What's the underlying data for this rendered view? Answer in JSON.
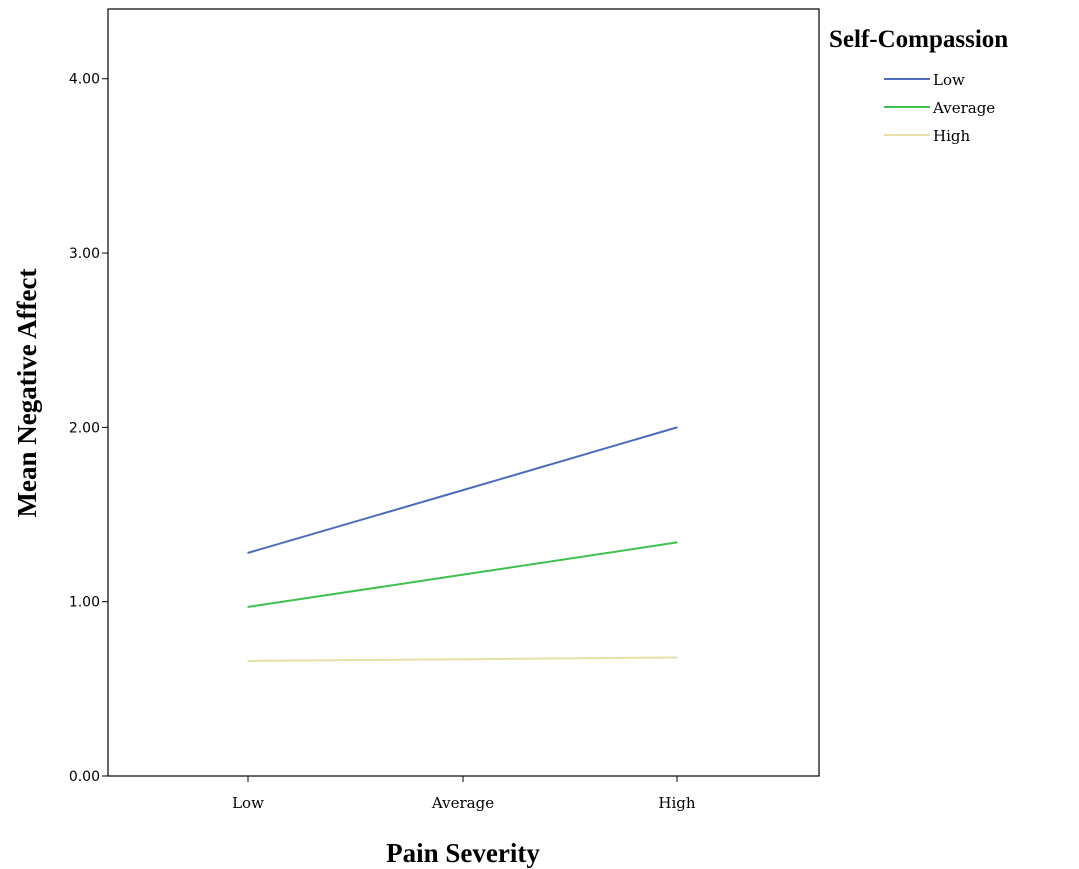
{
  "chart_data": {
    "type": "line",
    "title": "",
    "xlabel": "Pain Severity",
    "ylabel": "Mean Negative Affect",
    "categories": [
      "Low",
      "Average",
      "High"
    ],
    "ylim": [
      0,
      4.4
    ],
    "yticks": [
      0,
      1,
      2,
      3,
      4
    ],
    "ytick_labels": [
      "0.00",
      "1.00",
      "2.00",
      "3.00",
      "4.00"
    ],
    "grid": false,
    "legend": {
      "title": "Self-Compassion",
      "placement": "top-right, outside plot"
    },
    "series": [
      {
        "name": "Low",
        "color": "#4a6cbb",
        "values": [
          1.28,
          1.64,
          2.0
        ]
      },
      {
        "name": "Average",
        "color": "#3ec14f",
        "values": [
          0.97,
          1.155,
          1.34
        ]
      },
      {
        "name": "High",
        "color": "#e6e0a8",
        "values": [
          0.66,
          0.67,
          0.68
        ]
      }
    ]
  }
}
